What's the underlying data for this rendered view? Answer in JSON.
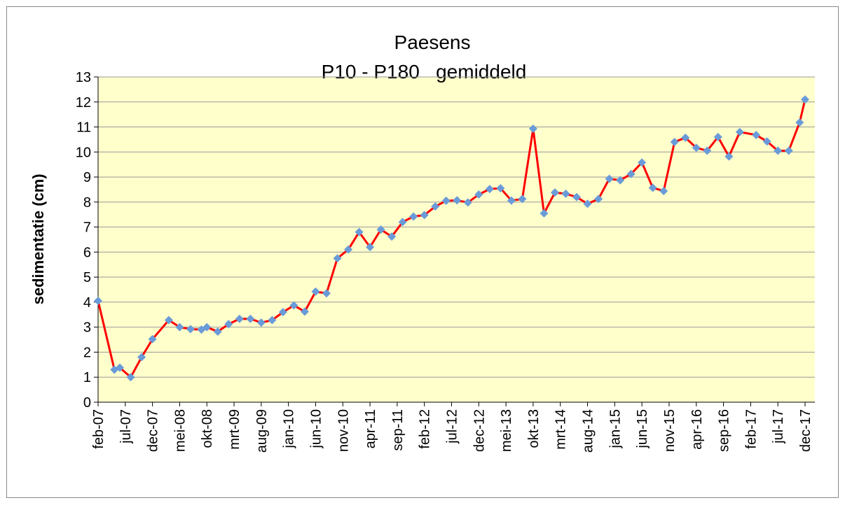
{
  "chart_data": {
    "type": "line",
    "title": "Paesens",
    "subtitle": "P10 - P180   gemiddeld",
    "y_label": "sedimentatie (cm)",
    "x": [
      "2007-02",
      "2007-05",
      "2007-06",
      "2007-08",
      "2007-10",
      "2007-12",
      "2008-03",
      "2008-05",
      "2008-07",
      "2008-09",
      "2008-10",
      "2008-12",
      "2009-02",
      "2009-04",
      "2009-06",
      "2009-08",
      "2009-10",
      "2009-12",
      "2010-02",
      "2010-04",
      "2010-06",
      "2010-08",
      "2010-10",
      "2010-12",
      "2011-02",
      "2011-04",
      "2011-06",
      "2011-08",
      "2011-10",
      "2011-12",
      "2012-02",
      "2012-04",
      "2012-06",
      "2012-08",
      "2012-10",
      "2012-12",
      "2013-02",
      "2013-04",
      "2013-06",
      "2013-08",
      "2013-10",
      "2013-12",
      "2014-02",
      "2014-04",
      "2014-06",
      "2014-08",
      "2014-10",
      "2014-12",
      "2015-02",
      "2015-04",
      "2015-06",
      "2015-08",
      "2015-10",
      "2015-12",
      "2016-02",
      "2016-04",
      "2016-06",
      "2016-08",
      "2016-10",
      "2016-12",
      "2017-03",
      "2017-05",
      "2017-07",
      "2017-09",
      "2017-11",
      "2017-12"
    ],
    "series": [
      {
        "name": "P10 - P180 gemiddeld",
        "color": "#ff0000",
        "marker_color": "#6a9bd8",
        "values": [
          4.05,
          1.3,
          1.38,
          1.0,
          1.8,
          2.52,
          3.28,
          3.0,
          2.92,
          2.9,
          3.0,
          2.82,
          3.12,
          3.33,
          3.33,
          3.18,
          3.28,
          3.6,
          3.87,
          3.62,
          4.42,
          4.35,
          5.75,
          6.1,
          6.8,
          6.2,
          6.9,
          6.62,
          7.2,
          7.42,
          7.48,
          7.82,
          8.05,
          8.07,
          7.98,
          8.3,
          8.52,
          8.55,
          8.06,
          8.12,
          10.93,
          7.55,
          8.38,
          8.33,
          8.2,
          7.93,
          8.12,
          8.93,
          8.87,
          9.12,
          9.58,
          8.57,
          8.44,
          10.4,
          10.57,
          10.17,
          10.05,
          10.6,
          9.82,
          10.8,
          10.68,
          10.42,
          10.05,
          10.05,
          11.18,
          12.1
        ]
      }
    ],
    "xlim": [
      "2007-02",
      "2017-12"
    ],
    "xticks": [
      {
        "value": "2007-02",
        "label": "feb-07"
      },
      {
        "value": "2007-07",
        "label": "jul-07"
      },
      {
        "value": "2007-12",
        "label": "dec-07"
      },
      {
        "value": "2008-05",
        "label": "mei-08"
      },
      {
        "value": "2008-10",
        "label": "okt-08"
      },
      {
        "value": "2009-03",
        "label": "mrt-09"
      },
      {
        "value": "2009-08",
        "label": "aug-09"
      },
      {
        "value": "2010-01",
        "label": "jan-10"
      },
      {
        "value": "2010-06",
        "label": "jun-10"
      },
      {
        "value": "2010-11",
        "label": "nov-10"
      },
      {
        "value": "2011-04",
        "label": "apr-11"
      },
      {
        "value": "2011-09",
        "label": "sep-11"
      },
      {
        "value": "2012-02",
        "label": "feb-12"
      },
      {
        "value": "2012-07",
        "label": "jul-12"
      },
      {
        "value": "2012-12",
        "label": "dec-12"
      },
      {
        "value": "2013-05",
        "label": "mei-13"
      },
      {
        "value": "2013-10",
        "label": "okt-13"
      },
      {
        "value": "2014-03",
        "label": "mrt-14"
      },
      {
        "value": "2014-08",
        "label": "aug-14"
      },
      {
        "value": "2015-01",
        "label": "jan-15"
      },
      {
        "value": "2015-06",
        "label": "jun-15"
      },
      {
        "value": "2015-11",
        "label": "nov-15"
      },
      {
        "value": "2016-04",
        "label": "apr-16"
      },
      {
        "value": "2016-09",
        "label": "sep-16"
      },
      {
        "value": "2017-02",
        "label": "feb-17"
      },
      {
        "value": "2017-07",
        "label": "jul-17"
      },
      {
        "value": "2017-12",
        "label": "dec-17"
      }
    ],
    "ylim": [
      0,
      13
    ],
    "yticks": [
      0,
      1,
      2,
      3,
      4,
      5,
      6,
      7,
      8,
      9,
      10,
      11,
      12,
      13
    ],
    "grid": true,
    "plot_background": "#ffffcc"
  }
}
